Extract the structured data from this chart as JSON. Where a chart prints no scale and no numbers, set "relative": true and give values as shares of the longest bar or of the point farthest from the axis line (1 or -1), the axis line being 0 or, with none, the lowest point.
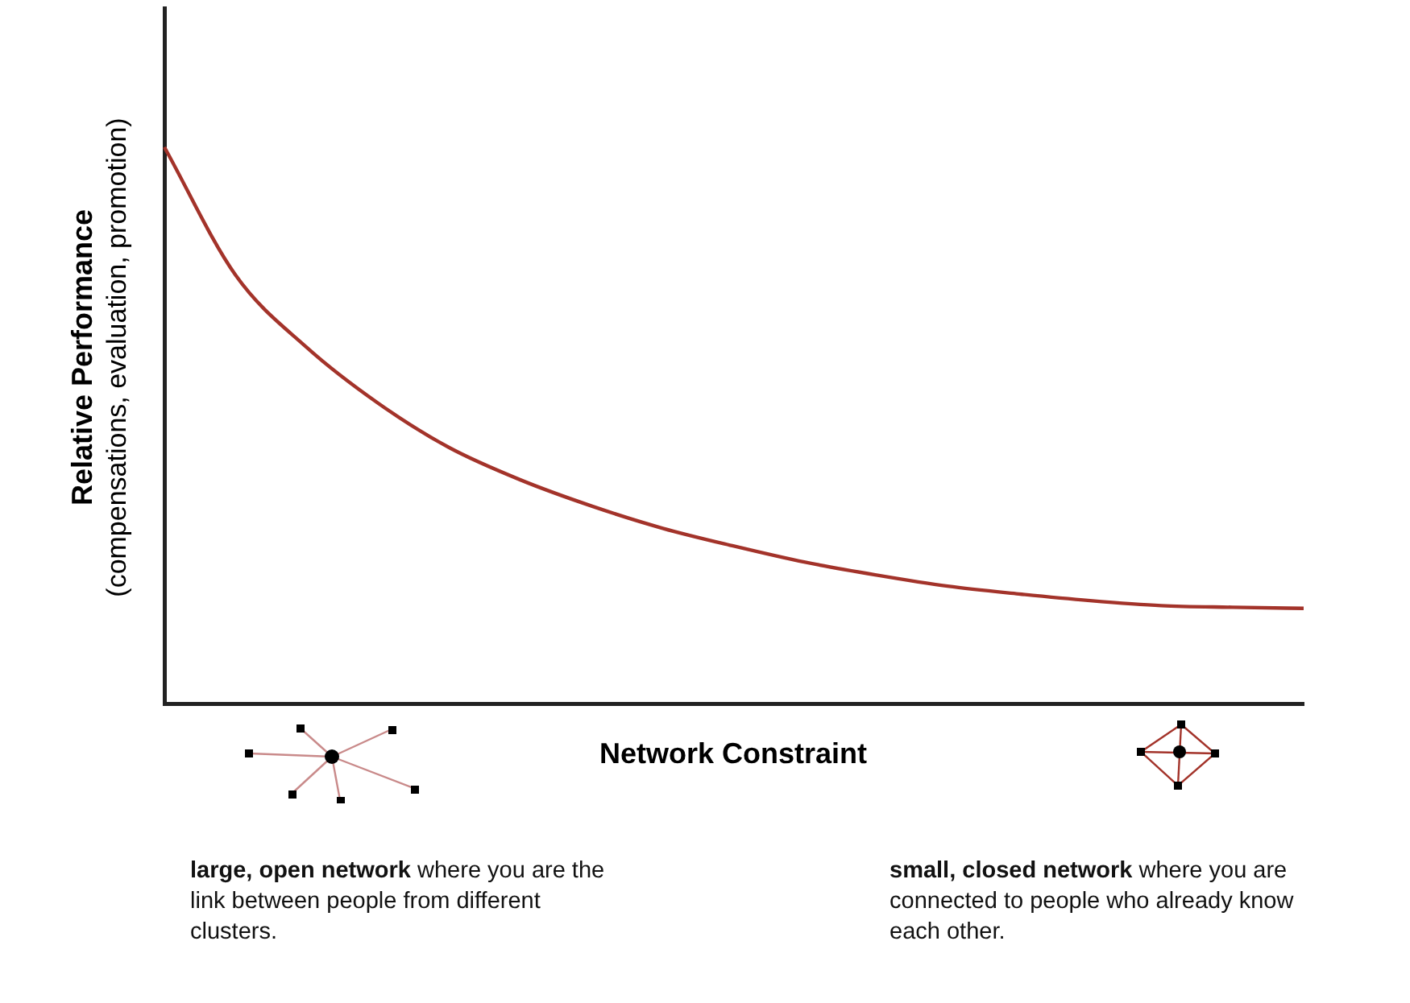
{
  "chart_data": {
    "type": "line",
    "relative": true,
    "ylabel": "Relative Performance\n(compensations, evaluation, promotion)",
    "xlabel": "Network Constraint",
    "categories": [
      null,
      null,
      null,
      null,
      null,
      null,
      null,
      null,
      null,
      null,
      null,
      null,
      null,
      null,
      null,
      null,
      null
    ],
    "series": [
      {
        "color": "#a3332a",
        "values": [
          1,
          0.77,
          0.64,
          0.54,
          0.46,
          0.402,
          0.355,
          0.315,
          0.283,
          0.254,
          0.231,
          0.211,
          0.197,
          0.185,
          0.176,
          0.173,
          0.171
        ]
      }
    ],
    "annotations": [
      "large, open network",
      "where you are the link between people from different clusters.",
      "small, closed network",
      "where you are connected to people who already know each other."
    ],
    "grid": false,
    "legend": false,
    "marker": "none",
    "line_style": "solid",
    "tick_labels": false
  }
}
